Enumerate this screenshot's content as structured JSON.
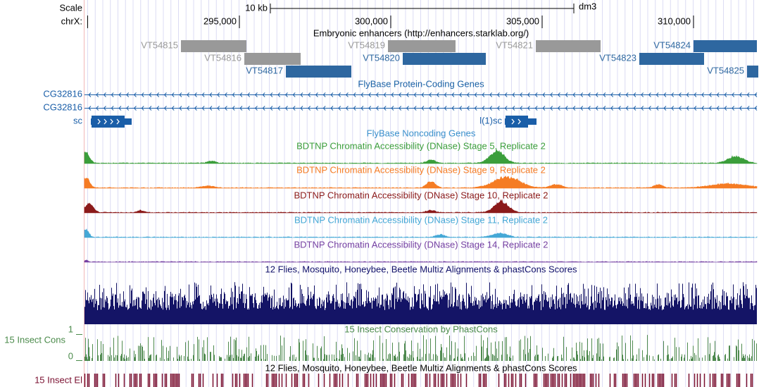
{
  "header": {
    "scale_label": "Scale",
    "scale_bar": "10 kb",
    "assembly": "dm3",
    "chrom": "chrX:",
    "positions": [
      {
        "value": 295000,
        "label": "295,000"
      },
      {
        "value": 300000,
        "label": "300,000"
      },
      {
        "value": 305000,
        "label": "305,000"
      },
      {
        "value": 310000,
        "label": "310,000"
      }
    ]
  },
  "tracks": {
    "enhancers": {
      "title": "Embryonic enhancers (http://enhancers.starklab.org/)",
      "features": [
        "VT54815",
        "VT54819",
        "VT54821",
        "VT54824",
        "VT54816",
        "VT54820",
        "VT54823",
        "VT54817",
        "VT54825"
      ]
    },
    "genes": {
      "title": "FlyBase Protein-Coding Genes",
      "features": [
        "CG32816",
        "CG32816",
        "sc",
        "l(1)sc"
      ]
    },
    "noncoding": {
      "title": "FlyBase Noncoding Genes"
    },
    "dnase": [
      "BDTNP Chromatin Accessibility (DNase) Stage 5, Replicate 2",
      "BDTNP Chromatin Accessibility (DNase) Stage 9, Replicate 2",
      "BDTNP Chromatin Accessibility (DNase) Stage 10, Replicate 2",
      "BDTNP Chromatin Accessibility (DNase) Stage 11, Replicate 2",
      "BDTNP Chromatin Accessibility (DNase) Stage 14, Replicate 2"
    ],
    "multiz": {
      "title": "12 Flies, Mosquito, Honeybee, Beetle Multiz Alignments & phastCons Scores"
    },
    "phastcons": {
      "title": "15 Insect Conservation by PhastCons",
      "label": "15 Insect Cons",
      "max": "1",
      "min": "0"
    },
    "elements": {
      "title": "12 Flies, Mosquito, Honeybee, Beetle Multiz Alignments & phastCons Scores",
      "label": "15 Insect El"
    }
  }
}
